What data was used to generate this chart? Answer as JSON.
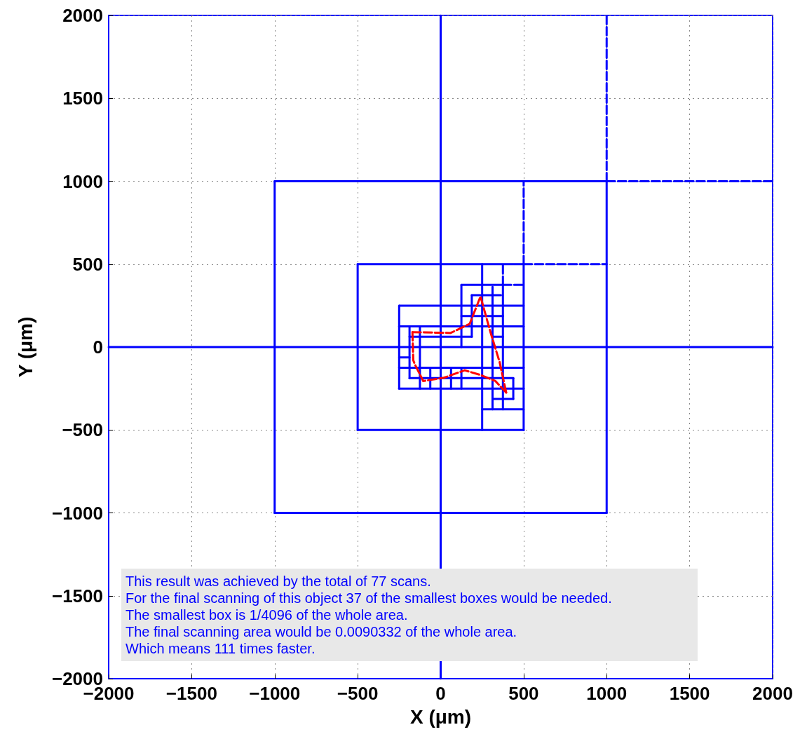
{
  "chart_data": {
    "type": "line",
    "xlabel": "X (μm)",
    "ylabel": "Y (μm)",
    "xlim": [
      -2000,
      2000
    ],
    "ylim": [
      -2000,
      2000
    ],
    "xticks": [
      -2000,
      -1500,
      -1000,
      -500,
      0,
      500,
      1000,
      1500,
      2000
    ],
    "yticks": [
      -2000,
      -1500,
      -1000,
      -500,
      0,
      500,
      1000,
      1500,
      2000
    ],
    "grid": true,
    "marker": "none",
    "line_style": "solid",
    "annotations": [
      "This result was achieved by the total of 77 scans.",
      "For the final scanning of this object 37 of the smallest boxes would be needed.",
      "The smallest box is 1/4096 of the whole area.",
      "The final scanning area would be 0.0090332 of the whole area.",
      "Which means 111 times faster."
    ],
    "series": [
      {
        "color": "#0000ff",
        "x": [
          -2000,
          2000
        ],
        "values": [
          0,
          0
        ]
      },
      {
        "color": "#0000ff",
        "x": [
          0,
          0
        ],
        "values": [
          -2000,
          2000
        ]
      },
      {
        "color": "#0000ff",
        "x": [
          -1000,
          1000
        ],
        "values": [
          -1000,
          -1000
        ]
      },
      {
        "color": "#0000ff",
        "x": [
          -1000,
          1000
        ],
        "values": [
          1000,
          1000
        ]
      },
      {
        "color": "#0000ff",
        "x": [
          -1000,
          -1000
        ],
        "values": [
          -1000,
          1000
        ]
      },
      {
        "color": "#0000ff",
        "x": [
          1000,
          1000
        ],
        "values": [
          -1000,
          1000
        ]
      },
      {
        "color": "#0000ff",
        "x": [
          -500,
          500
        ],
        "values": [
          -500,
          -500
        ]
      },
      {
        "color": "#0000ff",
        "x": [
          -500,
          500
        ],
        "values": [
          500,
          500
        ]
      },
      {
        "color": "#0000ff",
        "x": [
          -500,
          -500
        ],
        "values": [
          -500,
          500
        ]
      },
      {
        "color": "#0000ff",
        "x": [
          500,
          500
        ],
        "values": [
          -500,
          500
        ]
      },
      {
        "color": "#0000ff",
        "x": [
          125,
          375
        ],
        "values": [
          375,
          375
        ]
      },
      {
        "color": "#0000ff",
        "x": [
          187.5,
          312.5
        ],
        "values": [
          312.5,
          312.5
        ]
      },
      {
        "color": "#0000ff",
        "x": [
          -250,
          500
        ],
        "values": [
          250,
          250
        ]
      },
      {
        "color": "#0000ff",
        "x": [
          125,
          375
        ],
        "values": [
          187.5,
          187.5
        ]
      },
      {
        "color": "#0000ff",
        "x": [
          -250,
          500
        ],
        "values": [
          125,
          125
        ]
      },
      {
        "color": "#0000ff",
        "x": [
          -187.5,
          187.5
        ],
        "values": [
          62.5,
          62.5
        ]
      },
      {
        "color": "#0000ff",
        "x": [
          312.5,
          375
        ],
        "values": [
          62.5,
          62.5
        ]
      },
      {
        "color": "#0000ff",
        "x": [
          -250,
          -187.5
        ],
        "values": [
          -62.5,
          -62.5
        ]
      },
      {
        "color": "#0000ff",
        "x": [
          -250,
          500
        ],
        "values": [
          -125,
          -125
        ]
      },
      {
        "color": "#0000ff",
        "x": [
          -187.5,
          437.5
        ],
        "values": [
          -187.5,
          -187.5
        ]
      },
      {
        "color": "#0000ff",
        "x": [
          -250,
          500
        ],
        "values": [
          -250,
          -250
        ]
      },
      {
        "color": "#0000ff",
        "x": [
          312.5,
          437.5
        ],
        "values": [
          -312.5,
          -312.5
        ]
      },
      {
        "color": "#0000ff",
        "x": [
          250,
          500
        ],
        "values": [
          -375,
          -375
        ]
      },
      {
        "color": "#0000ff",
        "x": [
          -250,
          -250
        ],
        "values": [
          -250,
          250
        ]
      },
      {
        "color": "#0000ff",
        "x": [
          -187.5,
          -187.5
        ],
        "values": [
          -187.5,
          125
        ]
      },
      {
        "color": "#0000ff",
        "x": [
          -125,
          -125
        ],
        "values": [
          -250,
          125
        ]
      },
      {
        "color": "#0000ff",
        "x": [
          -62.5,
          -62.5
        ],
        "values": [
          -250,
          -125
        ]
      },
      {
        "color": "#0000ff",
        "x": [
          62.5,
          62.5
        ],
        "values": [
          -250,
          -125
        ]
      },
      {
        "color": "#0000ff",
        "x": [
          125,
          125
        ],
        "values": [
          0,
          375
        ]
      },
      {
        "color": "#0000ff",
        "x": [
          125,
          125
        ],
        "values": [
          -250,
          -125
        ]
      },
      {
        "color": "#0000ff",
        "x": [
          187.5,
          187.5
        ],
        "values": [
          62.5,
          312.5
        ]
      },
      {
        "color": "#0000ff",
        "x": [
          250,
          250
        ],
        "values": [
          -500,
          500
        ]
      },
      {
        "color": "#0000ff",
        "x": [
          312.5,
          312.5
        ],
        "values": [
          -375,
          312.5
        ]
      },
      {
        "color": "#0000ff",
        "x": [
          375,
          375
        ],
        "values": [
          -375,
          375
        ]
      },
      {
        "color": "#0000ff",
        "x": [
          437.5,
          437.5
        ],
        "values": [
          -312.5,
          -187.5
        ]
      },
      {
        "color": "#0000ff",
        "line_style": "dashed",
        "x": [
          1000,
          1000
        ],
        "values": [
          1000,
          2000
        ]
      },
      {
        "color": "#0000ff",
        "line_style": "dashed",
        "x": [
          1000,
          2000
        ],
        "values": [
          1000,
          1000
        ]
      },
      {
        "color": "#0000ff",
        "line_style": "dashed",
        "x": [
          500,
          500
        ],
        "values": [
          500,
          1000
        ]
      },
      {
        "color": "#0000ff",
        "line_style": "dashed",
        "x": [
          500,
          1000
        ],
        "values": [
          500,
          500
        ]
      },
      {
        "color": "#0000ff",
        "line_style": "dashed",
        "x": [
          375,
          375
        ],
        "values": [
          375,
          500
        ]
      },
      {
        "color": "#0000ff",
        "line_style": "dashed",
        "x": [
          375,
          500
        ],
        "values": [
          375,
          375
        ]
      },
      {
        "color": "#0000ff",
        "line_style": "dashed",
        "x": [
          312.5,
          312.5
        ],
        "values": [
          312.5,
          375
        ]
      },
      {
        "color": "#0000ff",
        "line_style": "dashed",
        "x": [
          312.5,
          375
        ],
        "values": [
          312.5,
          312.5
        ]
      },
      {
        "color": "#ff0000",
        "line_style": "dashed",
        "x": [
          -170,
          60,
          175,
          240,
          300,
          355,
          395
        ],
        "values": [
          90,
          85,
          140,
          305,
          90,
          -90,
          -275
        ]
      },
      {
        "color": "#ff0000",
        "line_style": "dashed",
        "x": [
          -170,
          -165,
          -155,
          -105,
          20,
          145,
          245,
          330,
          395
        ],
        "values": [
          90,
          -80,
          -105,
          -205,
          -185,
          -140,
          -170,
          -205,
          -275
        ]
      }
    ]
  }
}
